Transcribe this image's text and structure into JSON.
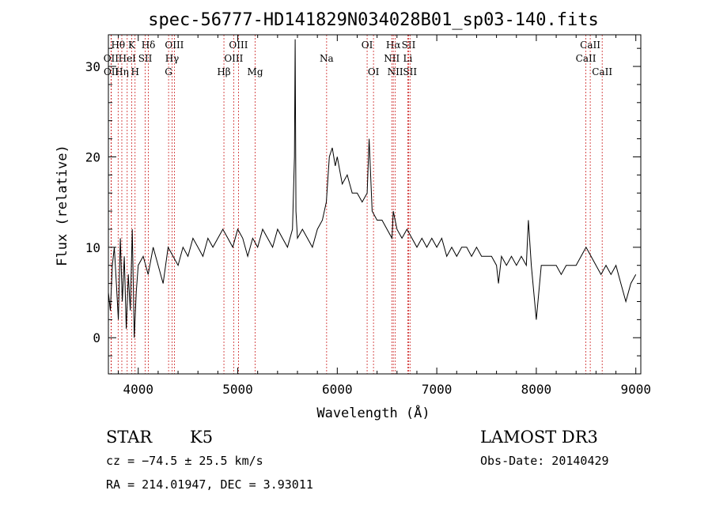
{
  "chart_data": {
    "type": "line",
    "title": "spec-56777-HD141829N034028B01_sp03-140.fits",
    "xlabel": "Wavelength (Å)",
    "ylabel": "Flux (relative)",
    "xlim": [
      3700,
      9050
    ],
    "ylim": [
      -4,
      33.5
    ],
    "xticks": [
      4000,
      5000,
      6000,
      7000,
      8000,
      9000
    ],
    "yticks": [
      0,
      10,
      20,
      30
    ],
    "grid": false,
    "series": [
      {
        "x": [
          3700,
          3720,
          3740,
          3760,
          3780,
          3800,
          3820,
          3840,
          3860,
          3880,
          3900,
          3920,
          3940,
          3960,
          3980,
          4000,
          4050,
          4100,
          4150,
          4200,
          4250,
          4300,
          4350,
          4400,
          4450,
          4500,
          4550,
          4600,
          4650,
          4700,
          4750,
          4800,
          4850,
          4900,
          4950,
          5000,
          5050,
          5100,
          5150,
          5200,
          5250,
          5300,
          5350,
          5400,
          5450,
          5500,
          5550,
          5570,
          5577,
          5585,
          5600,
          5650,
          5700,
          5750,
          5800,
          5850,
          5890,
          5920,
          5950,
          5980,
          6000,
          6050,
          6100,
          6150,
          6200,
          6250,
          6300,
          6320,
          6350,
          6400,
          6450,
          6500,
          6550,
          6563,
          6600,
          6650,
          6700,
          6750,
          6800,
          6850,
          6900,
          6950,
          7000,
          7050,
          7100,
          7150,
          7200,
          7250,
          7300,
          7350,
          7400,
          7450,
          7500,
          7550,
          7600,
          7620,
          7650,
          7700,
          7750,
          7800,
          7850,
          7900,
          7920,
          7950,
          8000,
          8050,
          8100,
          8150,
          8200,
          8250,
          8300,
          8350,
          8400,
          8450,
          8500,
          8550,
          8600,
          8650,
          8700,
          8750,
          8800,
          8850,
          8900,
          8950,
          9000
        ],
        "y": [
          5,
          3,
          8,
          10,
          6,
          2,
          11,
          4,
          9,
          1,
          7,
          3,
          12,
          0,
          5,
          8,
          9,
          7,
          10,
          8,
          6,
          10,
          9,
          8,
          10,
          9,
          11,
          10,
          9,
          11,
          10,
          11,
          12,
          11,
          10,
          12,
          11,
          9,
          11,
          10,
          12,
          11,
          10,
          12,
          11,
          10,
          12,
          20,
          33,
          14,
          11,
          12,
          11,
          10,
          12,
          13,
          15,
          20,
          21,
          19,
          20,
          17,
          18,
          16,
          16,
          15,
          16,
          22,
          14,
          13,
          13,
          12,
          11,
          14,
          12,
          11,
          12,
          11,
          10,
          11,
          10,
          11,
          10,
          11,
          9,
          10,
          9,
          10,
          10,
          9,
          10,
          9,
          9,
          9,
          8,
          6,
          9,
          8,
          9,
          8,
          9,
          8,
          13,
          8,
          2,
          8,
          8,
          8,
          8,
          7,
          8,
          8,
          8,
          9,
          10,
          9,
          8,
          7,
          8,
          7,
          8,
          6,
          4,
          6,
          7
        ]
      }
    ],
    "lines": [
      {
        "name": "Hθ",
        "x": 3798,
        "row": 0
      },
      {
        "name": "OII",
        "x": 3727,
        "row": 1
      },
      {
        "name": "OII",
        "x": 3729,
        "row": 2
      },
      {
        "name": "K",
        "x": 3934,
        "row": 0
      },
      {
        "name": "HeI",
        "x": 3889,
        "row": 1
      },
      {
        "name": "Hη",
        "x": 3835,
        "row": 2
      },
      {
        "name": "H",
        "x": 3968,
        "row": 2
      },
      {
        "name": "Hδ",
        "x": 4102,
        "row": 0
      },
      {
        "name": "SII",
        "x": 4070,
        "row": 1
      },
      {
        "name": "OIII",
        "x": 4363,
        "row": 0
      },
      {
        "name": "Hγ",
        "x": 4340,
        "row": 1
      },
      {
        "name": "G",
        "x": 4305,
        "row": 2
      },
      {
        "name": "Hβ",
        "x": 4861,
        "row": 2
      },
      {
        "name": "OIII",
        "x": 5007,
        "row": 0
      },
      {
        "name": "OIII",
        "x": 4959,
        "row": 1
      },
      {
        "name": "Mg",
        "x": 5175,
        "row": 2
      },
      {
        "name": "Na",
        "x": 5893,
        "row": 1
      },
      {
        "name": "OI",
        "x": 6300,
        "row": 0
      },
      {
        "name": "OI",
        "x": 6364,
        "row": 2
      },
      {
        "name": "Hα",
        "x": 6563,
        "row": 0
      },
      {
        "name": "NII",
        "x": 6548,
        "row": 1
      },
      {
        "name": "NII",
        "x": 6583,
        "row": 2
      },
      {
        "name": "SII",
        "x": 6717,
        "row": 0
      },
      {
        "name": "Li",
        "x": 6708,
        "row": 1
      },
      {
        "name": "SII",
        "x": 6731,
        "row": 2
      },
      {
        "name": "CaII",
        "x": 8542,
        "row": 0
      },
      {
        "name": "CaII",
        "x": 8498,
        "row": 1
      },
      {
        "name": "CaII",
        "x": 8662,
        "row": 2
      }
    ]
  },
  "info": {
    "object_type": "STAR",
    "subclass": "K5",
    "survey": "LAMOST DR3",
    "redshift": "cz = −74.5 ± 25.5 km/s",
    "obs_date": "Obs-Date: 20140429",
    "coords": "RA = 214.01947, DEC =   3.93011"
  },
  "colors": {
    "spectrum": "#000000",
    "lines": "#cc2222"
  }
}
